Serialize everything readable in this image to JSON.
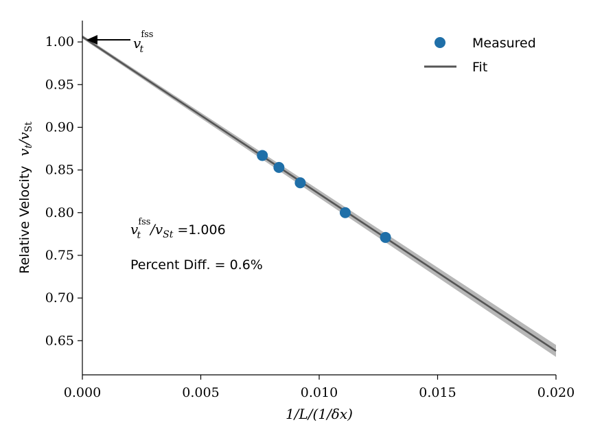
{
  "chart_data": {
    "type": "scatter",
    "title": "",
    "xlabel": "1/L/(1/δx)",
    "ylabel_prefix": "Relative Velocity",
    "ylabel_math": "v_t/v_St",
    "xlim": [
      0.0,
      0.02
    ],
    "ylim": [
      0.61,
      1.025
    ],
    "xticks": [
      0.0,
      0.005,
      0.01,
      0.015,
      0.02
    ],
    "xtick_labels": [
      "0.000",
      "0.005",
      "0.010",
      "0.015",
      "0.020"
    ],
    "yticks": [
      0.65,
      0.7,
      0.75,
      0.8,
      0.85,
      0.9,
      0.95,
      1.0
    ],
    "ytick_labels": [
      "0.65",
      "0.70",
      "0.75",
      "0.80",
      "0.85",
      "0.90",
      "0.95",
      "1.00"
    ],
    "grid": false,
    "legend_position": "top-right",
    "series": [
      {
        "name": "Measured",
        "kind": "scatter",
        "color": "#1f6fa8",
        "x": [
          0.0076,
          0.0083,
          0.0092,
          0.0111,
          0.0128
        ],
        "y": [
          0.867,
          0.853,
          0.835,
          0.8,
          0.771
        ]
      },
      {
        "name": "Fit",
        "kind": "line",
        "color": "#555555",
        "band_color": "#aaaaaa",
        "intercept": 1.006,
        "slope": -18.4,
        "band_halfwidth_at_0": 0.002,
        "band_halfwidth_at_max": 0.007
      }
    ],
    "annotations": {
      "arrow_label_base": "v",
      "arrow_label_sup": "fss",
      "arrow_label_sub": "t",
      "ratio_label_sup": "fss",
      "ratio_label_sub": "t",
      "ratio_label_mid": "/v",
      "ratio_label_sub2": "St",
      "ratio_value": "=1.006",
      "percent_text": "Percent Diff. = 0.6%"
    }
  }
}
